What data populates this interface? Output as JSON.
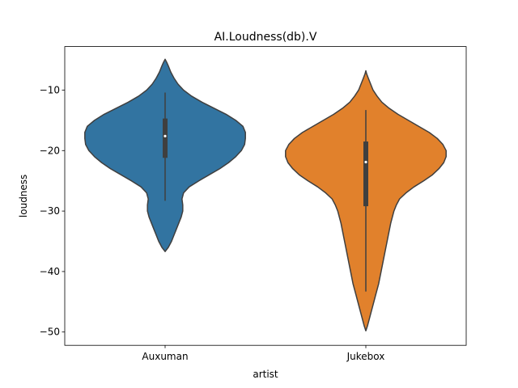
{
  "chart_data": {
    "type": "violin",
    "title": "AI.Loudness(db).V",
    "xlabel": "artist",
    "ylabel": "loudness",
    "categories": [
      "Auxuman",
      "Jukebox"
    ],
    "ylim": [
      -52.2,
      -2.8
    ],
    "yticks": [
      -10,
      -20,
      -30,
      -40,
      -50
    ],
    "ytick_labels": [
      "−10",
      "−20",
      "−30",
      "−40",
      "−50"
    ],
    "colors": [
      "#3274a1",
      "#e1812c"
    ],
    "violins": [
      {
        "name": "Auxuman",
        "min": -36.7,
        "max": -4.9,
        "q1": -21.2,
        "median": -17.6,
        "q3": -14.7,
        "whisker_low": -28.3,
        "whisker_high": -10.4,
        "profile": [
          [
            -36.7,
            0.0
          ],
          [
            -36.0,
            0.04
          ],
          [
            -35.0,
            0.08
          ],
          [
            -34.0,
            0.11
          ],
          [
            -33.0,
            0.14
          ],
          [
            -32.0,
            0.17
          ],
          [
            -31.0,
            0.2
          ],
          [
            -30.0,
            0.22
          ],
          [
            -29.0,
            0.22
          ],
          [
            -28.0,
            0.21
          ],
          [
            -27.0,
            0.23
          ],
          [
            -26.0,
            0.3
          ],
          [
            -25.0,
            0.42
          ],
          [
            -24.0,
            0.55
          ],
          [
            -23.0,
            0.68
          ],
          [
            -22.0,
            0.79
          ],
          [
            -21.0,
            0.88
          ],
          [
            -20.0,
            0.95
          ],
          [
            -19.0,
            0.99
          ],
          [
            -18.0,
            1.0
          ],
          [
            -17.0,
            1.0
          ],
          [
            -16.0,
            0.97
          ],
          [
            -15.0,
            0.88
          ],
          [
            -14.0,
            0.76
          ],
          [
            -13.0,
            0.61
          ],
          [
            -12.0,
            0.46
          ],
          [
            -11.0,
            0.33
          ],
          [
            -10.0,
            0.23
          ],
          [
            -9.0,
            0.16
          ],
          [
            -8.0,
            0.11
          ],
          [
            -7.0,
            0.07
          ],
          [
            -6.0,
            0.04
          ],
          [
            -5.4,
            0.02
          ],
          [
            -4.9,
            0.0
          ]
        ]
      },
      {
        "name": "Jukebox",
        "min": -49.8,
        "max": -6.8,
        "q1": -29.2,
        "median": -21.9,
        "q3": -18.5,
        "whisker_low": -43.3,
        "whisker_high": -13.3,
        "profile": [
          [
            -49.8,
            0.0
          ],
          [
            -49.0,
            0.02
          ],
          [
            -48.0,
            0.04
          ],
          [
            -47.0,
            0.06
          ],
          [
            -46.0,
            0.08
          ],
          [
            -44.0,
            0.12
          ],
          [
            -42.0,
            0.16
          ],
          [
            -40.0,
            0.19
          ],
          [
            -38.0,
            0.22
          ],
          [
            -36.0,
            0.25
          ],
          [
            -34.0,
            0.28
          ],
          [
            -32.0,
            0.31
          ],
          [
            -30.0,
            0.35
          ],
          [
            -29.0,
            0.38
          ],
          [
            -28.0,
            0.42
          ],
          [
            -27.0,
            0.5
          ],
          [
            -26.0,
            0.6
          ],
          [
            -25.0,
            0.72
          ],
          [
            -24.0,
            0.83
          ],
          [
            -23.0,
            0.91
          ],
          [
            -22.0,
            0.97
          ],
          [
            -21.0,
            1.0
          ],
          [
            -20.0,
            1.0
          ],
          [
            -19.0,
            0.96
          ],
          [
            -18.0,
            0.89
          ],
          [
            -17.0,
            0.79
          ],
          [
            -16.0,
            0.66
          ],
          [
            -15.0,
            0.53
          ],
          [
            -14.0,
            0.4
          ],
          [
            -13.0,
            0.29
          ],
          [
            -12.0,
            0.2
          ],
          [
            -11.0,
            0.14
          ],
          [
            -10.0,
            0.09
          ],
          [
            -9.0,
            0.06
          ],
          [
            -8.0,
            0.03
          ],
          [
            -7.3,
            0.01
          ],
          [
            -6.8,
            0.0
          ]
        ]
      }
    ]
  }
}
